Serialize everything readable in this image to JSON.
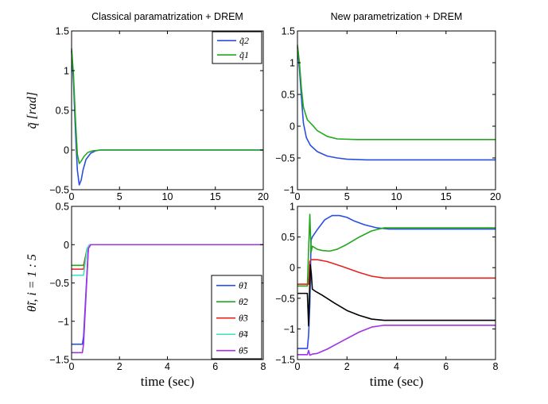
{
  "chart_data": [
    {
      "type": "line",
      "title": "Classical paramatrization + DREM",
      "xlabel": "",
      "ylabel": "q̃ [rad]",
      "xlim": [
        0,
        20
      ],
      "ylim": [
        -0.5,
        1.5
      ],
      "xticks": [
        0,
        5,
        10,
        15,
        20
      ],
      "yticks": [
        -0.5,
        0,
        0.5,
        1,
        1.5
      ],
      "ytick_labels": [
        "−0.5",
        "0",
        "0.5",
        "1",
        "1.5"
      ],
      "legend": "top-right",
      "series": [
        {
          "name": "q̃2",
          "color": "#2a4fe0",
          "x": [
            0,
            0.2,
            0.4,
            0.6,
            0.8,
            1.0,
            1.2,
            1.5,
            2,
            2.5,
            3,
            4,
            20
          ],
          "y": [
            1.25,
            0.85,
            0.25,
            -0.25,
            -0.44,
            -0.38,
            -0.25,
            -0.12,
            -0.04,
            -0.01,
            0,
            0,
            0
          ]
        },
        {
          "name": "q̃1",
          "color": "#22a81c",
          "x": [
            0,
            0.2,
            0.4,
            0.6,
            0.8,
            1.0,
            1.3,
            1.7,
            2.2,
            3,
            20
          ],
          "y": [
            1.28,
            0.95,
            0.4,
            -0.05,
            -0.17,
            -0.14,
            -0.08,
            -0.03,
            -0.01,
            0,
            0
          ]
        }
      ]
    },
    {
      "type": "line",
      "title": "New parametrization + DREM",
      "xlabel": "",
      "ylabel": "",
      "xlim": [
        0,
        20
      ],
      "ylim": [
        -1,
        1.5
      ],
      "xticks": [
        0,
        5,
        10,
        15,
        20
      ],
      "yticks": [
        -1,
        -0.5,
        0,
        0.5,
        1,
        1.5
      ],
      "ytick_labels": [
        "−1",
        "−0.5",
        "0",
        "0.5",
        "1",
        "1.5"
      ],
      "series": [
        {
          "name": "q̃2",
          "color": "#2a4fe0",
          "x": [
            0,
            0.2,
            0.4,
            0.6,
            0.9,
            1.3,
            2,
            3,
            4,
            5,
            7,
            10,
            20
          ],
          "y": [
            1.25,
            0.9,
            0.45,
            0.05,
            -0.18,
            -0.3,
            -0.4,
            -0.47,
            -0.5,
            -0.52,
            -0.53,
            -0.53,
            -0.53
          ]
        },
        {
          "name": "q̃1",
          "color": "#22a81c",
          "x": [
            0,
            0.2,
            0.4,
            0.6,
            0.8,
            1.0,
            1.5,
            2,
            3,
            4,
            6,
            10,
            20
          ],
          "y": [
            1.28,
            1.0,
            0.6,
            0.3,
            0.2,
            0.1,
            0.02,
            -0.07,
            -0.16,
            -0.2,
            -0.21,
            -0.21,
            -0.21
          ]
        }
      ]
    },
    {
      "type": "line",
      "title": "",
      "xlabel": "time (sec)",
      "ylabel": "θ̃i,  i = 1 : 5",
      "xlim": [
        0,
        8
      ],
      "ylim": [
        -1.5,
        0.5
      ],
      "xticks": [
        0,
        2,
        4,
        6,
        8
      ],
      "yticks": [
        -1.5,
        -1,
        -0.5,
        0,
        0.5
      ],
      "ytick_labels": [
        "−1.5",
        "−1",
        "−0.5",
        "0",
        "0.5"
      ],
      "legend": "bottom-right",
      "series": [
        {
          "name": "θ̃1",
          "color": "#2a4fe0",
          "x": [
            0,
            0.45,
            0.5,
            0.7,
            0.8,
            8
          ],
          "y": [
            -1.3,
            -1.3,
            -1.2,
            -0.05,
            0,
            0
          ]
        },
        {
          "name": "θ̃2",
          "color": "#22a81c",
          "x": [
            0,
            0.45,
            0.5,
            0.65,
            0.75,
            8
          ],
          "y": [
            -0.27,
            -0.27,
            -0.27,
            -0.05,
            0,
            0
          ]
        },
        {
          "name": "θ̃3",
          "color": "#e8231e",
          "x": [
            0,
            0.45,
            0.5,
            0.65,
            0.75,
            8
          ],
          "y": [
            -0.32,
            -0.32,
            -0.32,
            -0.05,
            0,
            0
          ]
        },
        {
          "name": "θ̃4",
          "color": "#47e6c2",
          "x": [
            0,
            0.45,
            0.5,
            0.65,
            0.75,
            8
          ],
          "y": [
            -0.4,
            -0.4,
            -0.4,
            -0.05,
            0,
            0
          ]
        },
        {
          "name": "θ̃5",
          "color": "#a033e6",
          "x": [
            0,
            0.45,
            0.5,
            0.7,
            0.8,
            8
          ],
          "y": [
            -1.41,
            -1.41,
            -1.3,
            -0.05,
            0,
            0
          ]
        }
      ]
    },
    {
      "type": "line",
      "title": "",
      "xlabel": "time (sec)",
      "ylabel": "",
      "xlim": [
        0,
        8
      ],
      "ylim": [
        -1.5,
        1
      ],
      "xticks": [
        0,
        2,
        4,
        6,
        8
      ],
      "yticks": [
        -1.5,
        -1,
        -0.5,
        0,
        0.5,
        1
      ],
      "ytick_labels": [
        "−1.5",
        "−1",
        "−0.5",
        "0",
        "0.5",
        "1"
      ],
      "series": [
        {
          "name": "θ̃1",
          "color": "#2a4fe0",
          "x": [
            0,
            0.4,
            0.45,
            0.5,
            0.55,
            0.6,
            0.8,
            1.1,
            1.4,
            1.7,
            2.0,
            2.3,
            2.7,
            3.2,
            3.7,
            8
          ],
          "y": [
            -1.32,
            -1.32,
            -1.1,
            -0.6,
            0.45,
            0.5,
            0.62,
            0.78,
            0.85,
            0.85,
            0.82,
            0.76,
            0.7,
            0.65,
            0.63,
            0.63
          ]
        },
        {
          "name": "θ̃2",
          "color": "#22a81c",
          "x": [
            0,
            0.4,
            0.45,
            0.5,
            0.55,
            0.6,
            0.8,
            1.0,
            1.3,
            1.6,
            2.0,
            2.5,
            3.0,
            3.5,
            8
          ],
          "y": [
            -0.3,
            -0.3,
            0.3,
            0.87,
            0.25,
            0.35,
            0.3,
            0.28,
            0.27,
            0.3,
            0.38,
            0.5,
            0.6,
            0.65,
            0.65
          ]
        },
        {
          "name": "θ̃3",
          "color": "#e8231e",
          "x": [
            0,
            0.45,
            0.5,
            0.55,
            0.8,
            1.2,
            1.8,
            2.5,
            3.0,
            3.5,
            8
          ],
          "y": [
            -0.27,
            -0.27,
            0.1,
            0.13,
            0.13,
            0.1,
            0.02,
            -0.08,
            -0.14,
            -0.17,
            -0.17
          ]
        },
        {
          "name": "θ̃4",
          "color": "#000000",
          "x": [
            0,
            0.4,
            0.45,
            0.48,
            0.52,
            0.56,
            0.6,
            0.7,
            1.0,
            1.5,
            2.0,
            2.5,
            3.0,
            3.5,
            8
          ],
          "y": [
            -0.42,
            -0.42,
            -0.95,
            -0.5,
            0.05,
            -0.1,
            -0.35,
            -0.38,
            -0.45,
            -0.58,
            -0.7,
            -0.78,
            -0.84,
            -0.86,
            -0.86
          ]
        },
        {
          "name": "θ̃5",
          "color": "#a033e6",
          "x": [
            0,
            0.4,
            0.45,
            0.5,
            0.6,
            0.8,
            1.2,
            1.8,
            2.5,
            3.0,
            3.5,
            8
          ],
          "y": [
            -1.42,
            -1.42,
            -1.35,
            -1.43,
            -1.41,
            -1.4,
            -1.33,
            -1.2,
            -1.05,
            -0.97,
            -0.94,
            -0.94
          ]
        }
      ]
    }
  ]
}
